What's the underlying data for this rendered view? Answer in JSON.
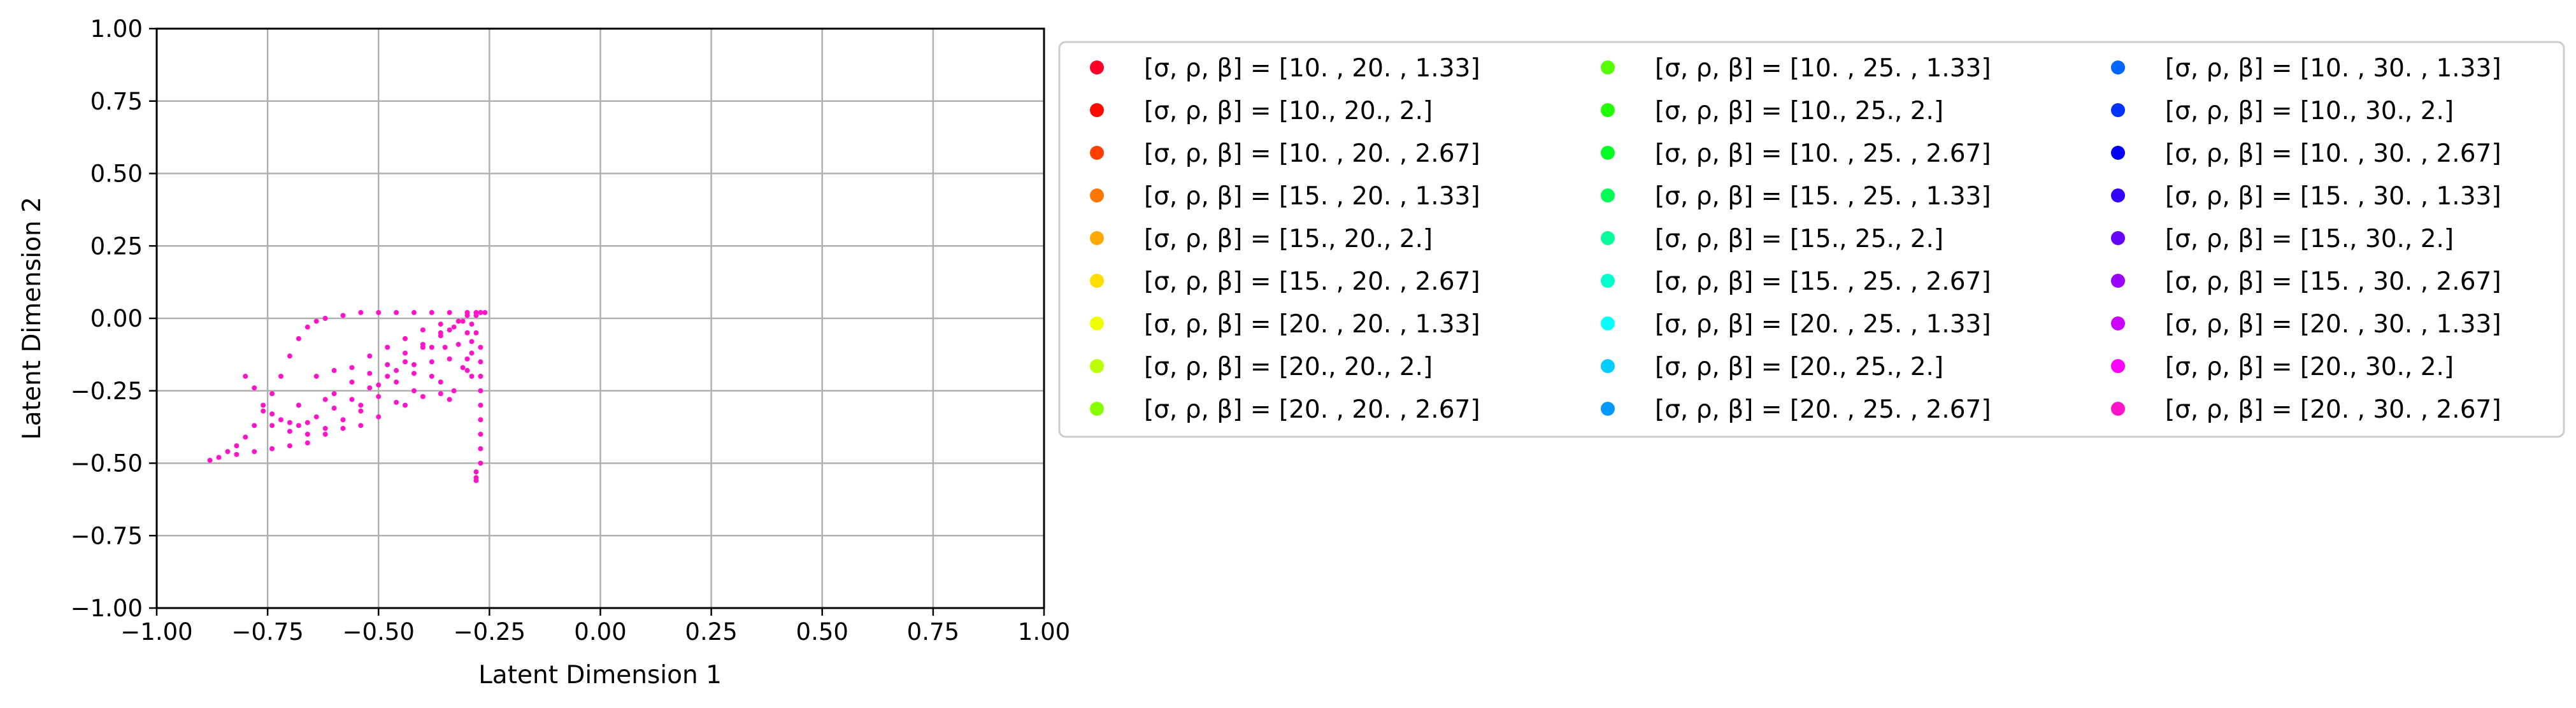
{
  "chart_data": {
    "type": "scatter",
    "title": "",
    "xlabel": "Latent Dimension 1",
    "ylabel": "Latent Dimension 2",
    "xlim": [
      -1.0,
      1.0
    ],
    "ylim": [
      -1.0,
      1.0
    ],
    "xticks": [
      "−1.00",
      "−0.75",
      "−0.50",
      "−0.25",
      "0.00",
      "0.25",
      "0.50",
      "0.75",
      "1.00"
    ],
    "yticks": [
      "1.00",
      "0.75",
      "0.50",
      "0.25",
      "0.00",
      "−0.25",
      "−0.50",
      "−0.75",
      "−1.00"
    ],
    "grid": true,
    "legend_placement": "outside-right",
    "legend_columns": 3,
    "visible_series_color": "#ff14c8",
    "series": [
      {
        "name": "[σ, ρ, β] = [10.  , 20.  ,  1.33]",
        "color": "#ff0028"
      },
      {
        "name": "[σ, ρ, β] = [10., 20.,  2.]",
        "color": "#ff0a00"
      },
      {
        "name": "[σ, ρ, β] = [10.  , 20.  ,  2.67]",
        "color": "#ff4000"
      },
      {
        "name": "[σ, ρ, β] = [15.  , 20.  ,  1.33]",
        "color": "#ff7700"
      },
      {
        "name": "[σ, ρ, β] = [15., 20.,  2.]",
        "color": "#ffaa00"
      },
      {
        "name": "[σ, ρ, β] = [15.  , 20.  ,  2.67]",
        "color": "#ffdd00"
      },
      {
        "name": "[σ, ρ, β] = [20.  , 20.  ,  1.33]",
        "color": "#eeff00"
      },
      {
        "name": "[σ, ρ, β] = [20., 20.,  2.]",
        "color": "#bbff00"
      },
      {
        "name": "[σ, ρ, β] = [20.  , 20.  ,  2.67]",
        "color": "#88ff00"
      },
      {
        "name": "[σ, ρ, β] = [10.  , 25.  ,  1.33]",
        "color": "#55ff00"
      },
      {
        "name": "[σ, ρ, β] = [10., 25.,  2.]",
        "color": "#22ff00"
      },
      {
        "name": "[σ, ρ, β] = [10.  , 25.  ,  2.67]",
        "color": "#00ff22"
      },
      {
        "name": "[σ, ρ, β] = [15.  , 25.  ,  1.33]",
        "color": "#00ff55"
      },
      {
        "name": "[σ, ρ, β] = [15., 25.,  2.]",
        "color": "#00ff99"
      },
      {
        "name": "[σ, ρ, β] = [15.  , 25.  ,  2.67]",
        "color": "#00ffcc"
      },
      {
        "name": "[σ, ρ, β] = [20.  , 25.  ,  1.33]",
        "color": "#00ffff"
      },
      {
        "name": "[σ, ρ, β] = [20., 25.,  2.]",
        "color": "#00ccff"
      },
      {
        "name": "[σ, ρ, β] = [20.  , 25.  ,  2.67]",
        "color": "#0099ff"
      },
      {
        "name": "[σ, ρ, β] = [10.  , 30.  ,  1.33]",
        "color": "#0066ff"
      },
      {
        "name": "[σ, ρ, β] = [10., 30.,  2.]",
        "color": "#0033ff"
      },
      {
        "name": "[σ, ρ, β] = [10.  , 30.  ,  2.67]",
        "color": "#0000ff"
      },
      {
        "name": "[σ, ρ, β] = [15.  , 30.  ,  1.33]",
        "color": "#3300ff"
      },
      {
        "name": "[σ, ρ, β] = [15., 30.,  2.]",
        "color": "#6600ff"
      },
      {
        "name": "[σ, ρ, β] = [15.  , 30.  ,  2.67]",
        "color": "#9900ff"
      },
      {
        "name": "[σ, ρ, β] = [20.  , 30.  ,  1.33]",
        "color": "#cc00ff"
      },
      {
        "name": "[σ, ρ, β] = [20., 30.,  2.]",
        "color": "#ff00ff"
      },
      {
        "name": "[σ, ρ, β] = [20.  , 30.  ,  2.67]",
        "color": "#ff14c8"
      }
    ],
    "visible_points": [
      [
        -0.88,
        -0.49
      ],
      [
        -0.86,
        -0.48
      ],
      [
        -0.84,
        -0.46
      ],
      [
        -0.82,
        -0.44
      ],
      [
        -0.8,
        -0.41
      ],
      [
        -0.78,
        -0.37
      ],
      [
        -0.76,
        -0.32
      ],
      [
        -0.74,
        -0.26
      ],
      [
        -0.72,
        -0.2
      ],
      [
        -0.7,
        -0.13
      ],
      [
        -0.68,
        -0.07
      ],
      [
        -0.66,
        -0.03
      ],
      [
        -0.64,
        -0.01
      ],
      [
        -0.62,
        0.0
      ],
      [
        -0.58,
        0.01
      ],
      [
        -0.54,
        0.02
      ],
      [
        -0.5,
        0.02
      ],
      [
        -0.46,
        0.02
      ],
      [
        -0.42,
        0.02
      ],
      [
        -0.38,
        0.02
      ],
      [
        -0.34,
        0.02
      ],
      [
        -0.3,
        0.02
      ],
      [
        -0.28,
        0.02
      ],
      [
        -0.27,
        0.02
      ],
      [
        -0.26,
        0.02
      ],
      [
        -0.8,
        -0.2
      ],
      [
        -0.78,
        -0.24
      ],
      [
        -0.76,
        -0.3
      ],
      [
        -0.74,
        -0.33
      ],
      [
        -0.72,
        -0.35
      ],
      [
        -0.7,
        -0.36
      ],
      [
        -0.68,
        -0.37
      ],
      [
        -0.66,
        -0.36
      ],
      [
        -0.64,
        -0.34
      ],
      [
        -0.6,
        -0.31
      ],
      [
        -0.56,
        -0.28
      ],
      [
        -0.52,
        -0.24
      ],
      [
        -0.48,
        -0.2
      ],
      [
        -0.44,
        -0.15
      ],
      [
        -0.4,
        -0.1
      ],
      [
        -0.36,
        -0.05
      ],
      [
        -0.32,
        -0.01
      ],
      [
        -0.3,
        0.01
      ],
      [
        -0.74,
        -0.37
      ],
      [
        -0.7,
        -0.39
      ],
      [
        -0.66,
        -0.4
      ],
      [
        -0.62,
        -0.38
      ],
      [
        -0.58,
        -0.35
      ],
      [
        -0.54,
        -0.32
      ],
      [
        -0.5,
        -0.27
      ],
      [
        -0.46,
        -0.22
      ],
      [
        -0.42,
        -0.16
      ],
      [
        -0.38,
        -0.1
      ],
      [
        -0.34,
        -0.04
      ],
      [
        -0.31,
        -0.01
      ],
      [
        -0.82,
        -0.47
      ],
      [
        -0.78,
        -0.46
      ],
      [
        -0.74,
        -0.45
      ],
      [
        -0.7,
        -0.44
      ],
      [
        -0.66,
        -0.43
      ],
      [
        -0.62,
        -0.4
      ],
      [
        -0.58,
        -0.38
      ],
      [
        -0.54,
        -0.37
      ],
      [
        -0.5,
        -0.34
      ],
      [
        -0.46,
        -0.29
      ],
      [
        -0.42,
        -0.25
      ],
      [
        -0.38,
        -0.2
      ],
      [
        -0.34,
        -0.14
      ],
      [
        -0.32,
        -0.09
      ],
      [
        -0.3,
        -0.05
      ],
      [
        -0.64,
        -0.2
      ],
      [
        -0.6,
        -0.18
      ],
      [
        -0.56,
        -0.17
      ],
      [
        -0.52,
        -0.13
      ],
      [
        -0.48,
        -0.1
      ],
      [
        -0.44,
        -0.07
      ],
      [
        -0.4,
        -0.04
      ],
      [
        -0.36,
        -0.02
      ],
      [
        -0.6,
        -0.26
      ],
      [
        -0.56,
        -0.22
      ],
      [
        -0.52,
        -0.19
      ],
      [
        -0.48,
        -0.16
      ],
      [
        -0.44,
        -0.12
      ],
      [
        -0.4,
        -0.09
      ],
      [
        -0.36,
        -0.06
      ],
      [
        -0.33,
        -0.03
      ],
      [
        -0.68,
        -0.3
      ],
      [
        -0.62,
        -0.28
      ],
      [
        -0.54,
        -0.3
      ],
      [
        -0.5,
        -0.23
      ],
      [
        -0.46,
        -0.18
      ],
      [
        -0.42,
        -0.19
      ],
      [
        -0.38,
        -0.15
      ],
      [
        -0.35,
        -0.1
      ],
      [
        -0.44,
        -0.3
      ],
      [
        -0.4,
        -0.27
      ],
      [
        -0.36,
        -0.22
      ],
      [
        -0.34,
        -0.28
      ],
      [
        -0.33,
        -0.25
      ],
      [
        -0.36,
        -0.26
      ],
      [
        -0.29,
        -0.02
      ],
      [
        -0.29,
        -0.08
      ],
      [
        -0.29,
        -0.12
      ],
      [
        -0.3,
        -0.14
      ],
      [
        -0.3,
        -0.18
      ],
      [
        -0.29,
        -0.2
      ],
      [
        -0.31,
        -0.17
      ],
      [
        -0.28,
        0.01
      ],
      [
        -0.28,
        -0.05
      ],
      [
        -0.27,
        -0.1
      ],
      [
        -0.27,
        -0.15
      ],
      [
        -0.27,
        -0.2
      ],
      [
        -0.27,
        -0.25
      ],
      [
        -0.27,
        -0.3
      ],
      [
        -0.27,
        -0.35
      ],
      [
        -0.27,
        -0.4
      ],
      [
        -0.27,
        -0.45
      ],
      [
        -0.27,
        -0.5
      ],
      [
        -0.28,
        -0.53
      ],
      [
        -0.28,
        -0.55
      ],
      [
        -0.28,
        -0.56
      ]
    ]
  }
}
